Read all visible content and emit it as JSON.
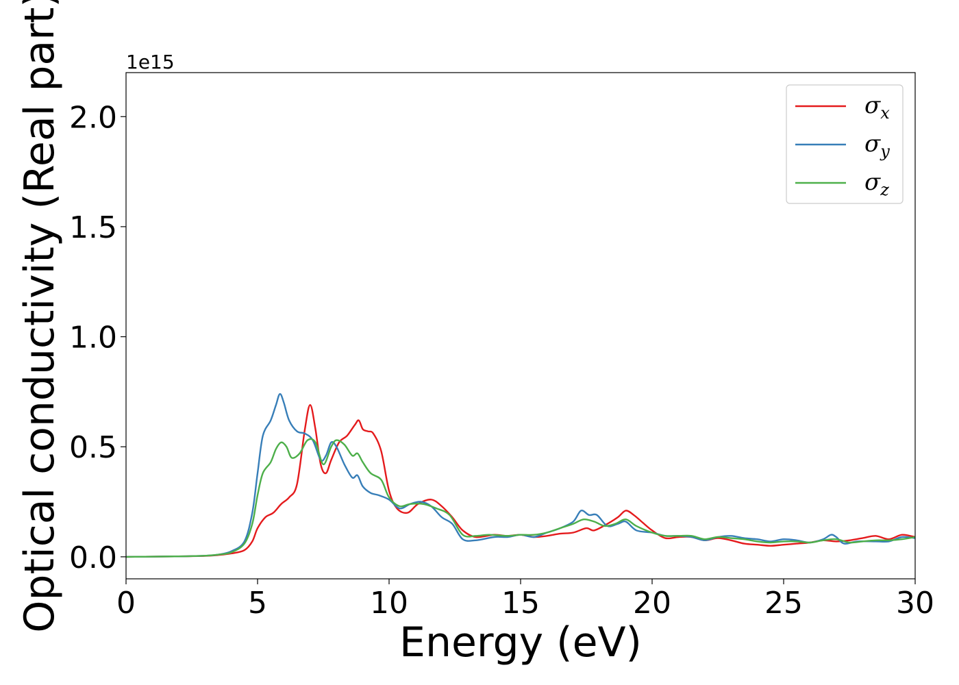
{
  "chart_data": {
    "type": "line",
    "xlabel": "Energy (eV)",
    "ylabel": "Optical conductivity (Real part)",
    "y_offset_label": "1e15",
    "xlim": [
      0,
      30
    ],
    "ylim": [
      -0.1,
      2.2
    ],
    "x_ticks": [
      0,
      5,
      10,
      15,
      20,
      25,
      30
    ],
    "x_tick_labels": [
      "0",
      "5",
      "10",
      "15",
      "20",
      "25",
      "30"
    ],
    "y_ticks": [
      0.0,
      0.5,
      1.0,
      1.5,
      2.0
    ],
    "y_tick_labels": [
      "0.0",
      "0.5",
      "1.0",
      "1.5",
      "2.0"
    ],
    "grid": false,
    "legend_position": "top-right",
    "series": [
      {
        "name": "σx",
        "symbol": "σ",
        "subscript": "x",
        "color": "#e41a1c",
        "points": [
          [
            0,
            0
          ],
          [
            2,
            0.002
          ],
          [
            3,
            0.004
          ],
          [
            3.5,
            0.008
          ],
          [
            4,
            0.015
          ],
          [
            4.5,
            0.03
          ],
          [
            4.8,
            0.07
          ],
          [
            5,
            0.13
          ],
          [
            5.3,
            0.18
          ],
          [
            5.6,
            0.2
          ],
          [
            5.9,
            0.24
          ],
          [
            6.2,
            0.27
          ],
          [
            6.5,
            0.33
          ],
          [
            6.8,
            0.58
          ],
          [
            7.0,
            0.69
          ],
          [
            7.2,
            0.58
          ],
          [
            7.4,
            0.42
          ],
          [
            7.6,
            0.38
          ],
          [
            7.8,
            0.44
          ],
          [
            8.1,
            0.52
          ],
          [
            8.4,
            0.55
          ],
          [
            8.7,
            0.6
          ],
          [
            8.85,
            0.62
          ],
          [
            9.0,
            0.58
          ],
          [
            9.2,
            0.57
          ],
          [
            9.4,
            0.56
          ],
          [
            9.7,
            0.48
          ],
          [
            10.0,
            0.3
          ],
          [
            10.3,
            0.22
          ],
          [
            10.7,
            0.2
          ],
          [
            11.1,
            0.24
          ],
          [
            11.6,
            0.26
          ],
          [
            12.0,
            0.23
          ],
          [
            12.4,
            0.18
          ],
          [
            12.8,
            0.12
          ],
          [
            13.3,
            0.09
          ],
          [
            14,
            0.1
          ],
          [
            14.5,
            0.095
          ],
          [
            15,
            0.1
          ],
          [
            15.5,
            0.09
          ],
          [
            16,
            0.095
          ],
          [
            16.5,
            0.105
          ],
          [
            17,
            0.11
          ],
          [
            17.5,
            0.13
          ],
          [
            17.8,
            0.12
          ],
          [
            18.3,
            0.15
          ],
          [
            18.7,
            0.18
          ],
          [
            19.0,
            0.21
          ],
          [
            19.3,
            0.19
          ],
          [
            19.6,
            0.16
          ],
          [
            20,
            0.12
          ],
          [
            20.5,
            0.085
          ],
          [
            21,
            0.09
          ],
          [
            21.5,
            0.09
          ],
          [
            22,
            0.075
          ],
          [
            22.5,
            0.085
          ],
          [
            23,
            0.075
          ],
          [
            23.5,
            0.06
          ],
          [
            24,
            0.055
          ],
          [
            24.5,
            0.05
          ],
          [
            25,
            0.055
          ],
          [
            25.5,
            0.06
          ],
          [
            26,
            0.065
          ],
          [
            26.5,
            0.075
          ],
          [
            27,
            0.07
          ],
          [
            27.5,
            0.075
          ],
          [
            28,
            0.085
          ],
          [
            28.5,
            0.095
          ],
          [
            29,
            0.08
          ],
          [
            29.5,
            0.1
          ],
          [
            30,
            0.09
          ]
        ]
      },
      {
        "name": "σy",
        "symbol": "σ",
        "subscript": "y",
        "color": "#377eb8",
        "points": [
          [
            0,
            0
          ],
          [
            2,
            0.002
          ],
          [
            3,
            0.005
          ],
          [
            3.5,
            0.01
          ],
          [
            4,
            0.025
          ],
          [
            4.5,
            0.07
          ],
          [
            4.8,
            0.2
          ],
          [
            5.0,
            0.38
          ],
          [
            5.2,
            0.55
          ],
          [
            5.5,
            0.62
          ],
          [
            5.7,
            0.69
          ],
          [
            5.85,
            0.74
          ],
          [
            6.0,
            0.7
          ],
          [
            6.2,
            0.62
          ],
          [
            6.5,
            0.57
          ],
          [
            6.8,
            0.56
          ],
          [
            7.1,
            0.53
          ],
          [
            7.4,
            0.44
          ],
          [
            7.6,
            0.46
          ],
          [
            7.8,
            0.52
          ],
          [
            8.0,
            0.5
          ],
          [
            8.3,
            0.42
          ],
          [
            8.6,
            0.36
          ],
          [
            8.8,
            0.37
          ],
          [
            9.0,
            0.32
          ],
          [
            9.3,
            0.29
          ],
          [
            9.6,
            0.28
          ],
          [
            10.0,
            0.26
          ],
          [
            10.4,
            0.22
          ],
          [
            10.8,
            0.24
          ],
          [
            11.2,
            0.25
          ],
          [
            11.6,
            0.23
          ],
          [
            12.0,
            0.18
          ],
          [
            12.4,
            0.15
          ],
          [
            12.8,
            0.08
          ],
          [
            13.3,
            0.075
          ],
          [
            14,
            0.09
          ],
          [
            14.5,
            0.09
          ],
          [
            15,
            0.1
          ],
          [
            15.5,
            0.09
          ],
          [
            16,
            0.11
          ],
          [
            16.5,
            0.13
          ],
          [
            17,
            0.16
          ],
          [
            17.3,
            0.21
          ],
          [
            17.6,
            0.19
          ],
          [
            17.9,
            0.19
          ],
          [
            18.3,
            0.14
          ],
          [
            18.7,
            0.15
          ],
          [
            19.0,
            0.16
          ],
          [
            19.4,
            0.12
          ],
          [
            20,
            0.11
          ],
          [
            20.5,
            0.095
          ],
          [
            21,
            0.095
          ],
          [
            21.5,
            0.09
          ],
          [
            22,
            0.075
          ],
          [
            22.5,
            0.09
          ],
          [
            23,
            0.095
          ],
          [
            23.5,
            0.085
          ],
          [
            24,
            0.08
          ],
          [
            24.5,
            0.07
          ],
          [
            25,
            0.08
          ],
          [
            25.5,
            0.075
          ],
          [
            26,
            0.065
          ],
          [
            26.5,
            0.08
          ],
          [
            26.8,
            0.1
          ],
          [
            27,
            0.09
          ],
          [
            27.3,
            0.06
          ],
          [
            27.8,
            0.07
          ],
          [
            28.5,
            0.07
          ],
          [
            29,
            0.07
          ],
          [
            29.5,
            0.09
          ],
          [
            30,
            0.085
          ]
        ]
      },
      {
        "name": "σz",
        "symbol": "σ",
        "subscript": "z",
        "color": "#4daf4a",
        "points": [
          [
            0,
            0
          ],
          [
            2,
            0.002
          ],
          [
            3,
            0.005
          ],
          [
            3.5,
            0.01
          ],
          [
            4,
            0.02
          ],
          [
            4.5,
            0.06
          ],
          [
            4.8,
            0.15
          ],
          [
            5.0,
            0.28
          ],
          [
            5.2,
            0.38
          ],
          [
            5.5,
            0.43
          ],
          [
            5.7,
            0.49
          ],
          [
            5.9,
            0.52
          ],
          [
            6.1,
            0.5
          ],
          [
            6.3,
            0.45
          ],
          [
            6.6,
            0.47
          ],
          [
            6.9,
            0.53
          ],
          [
            7.2,
            0.52
          ],
          [
            7.5,
            0.42
          ],
          [
            7.8,
            0.5
          ],
          [
            8.0,
            0.53
          ],
          [
            8.3,
            0.51
          ],
          [
            8.6,
            0.46
          ],
          [
            8.8,
            0.47
          ],
          [
            9.0,
            0.43
          ],
          [
            9.3,
            0.38
          ],
          [
            9.7,
            0.35
          ],
          [
            10.0,
            0.27
          ],
          [
            10.4,
            0.23
          ],
          [
            10.8,
            0.24
          ],
          [
            11.3,
            0.24
          ],
          [
            11.8,
            0.22
          ],
          [
            12.3,
            0.19
          ],
          [
            12.8,
            0.1
          ],
          [
            13.3,
            0.095
          ],
          [
            13.8,
            0.1
          ],
          [
            14.5,
            0.095
          ],
          [
            15,
            0.1
          ],
          [
            15.5,
            0.1
          ],
          [
            16,
            0.11
          ],
          [
            16.5,
            0.13
          ],
          [
            17,
            0.15
          ],
          [
            17.4,
            0.17
          ],
          [
            17.8,
            0.16
          ],
          [
            18.2,
            0.14
          ],
          [
            18.6,
            0.15
          ],
          [
            19.0,
            0.17
          ],
          [
            19.4,
            0.14
          ],
          [
            20,
            0.11
          ],
          [
            20.5,
            0.095
          ],
          [
            21,
            0.095
          ],
          [
            21.5,
            0.095
          ],
          [
            22,
            0.08
          ],
          [
            22.5,
            0.09
          ],
          [
            23,
            0.085
          ],
          [
            23.5,
            0.08
          ],
          [
            24,
            0.07
          ],
          [
            24.5,
            0.065
          ],
          [
            25,
            0.07
          ],
          [
            25.5,
            0.07
          ],
          [
            26,
            0.065
          ],
          [
            26.5,
            0.075
          ],
          [
            27,
            0.08
          ],
          [
            27.5,
            0.065
          ],
          [
            28,
            0.07
          ],
          [
            28.5,
            0.075
          ],
          [
            29,
            0.075
          ],
          [
            29.5,
            0.08
          ],
          [
            30,
            0.09
          ]
        ]
      }
    ]
  }
}
